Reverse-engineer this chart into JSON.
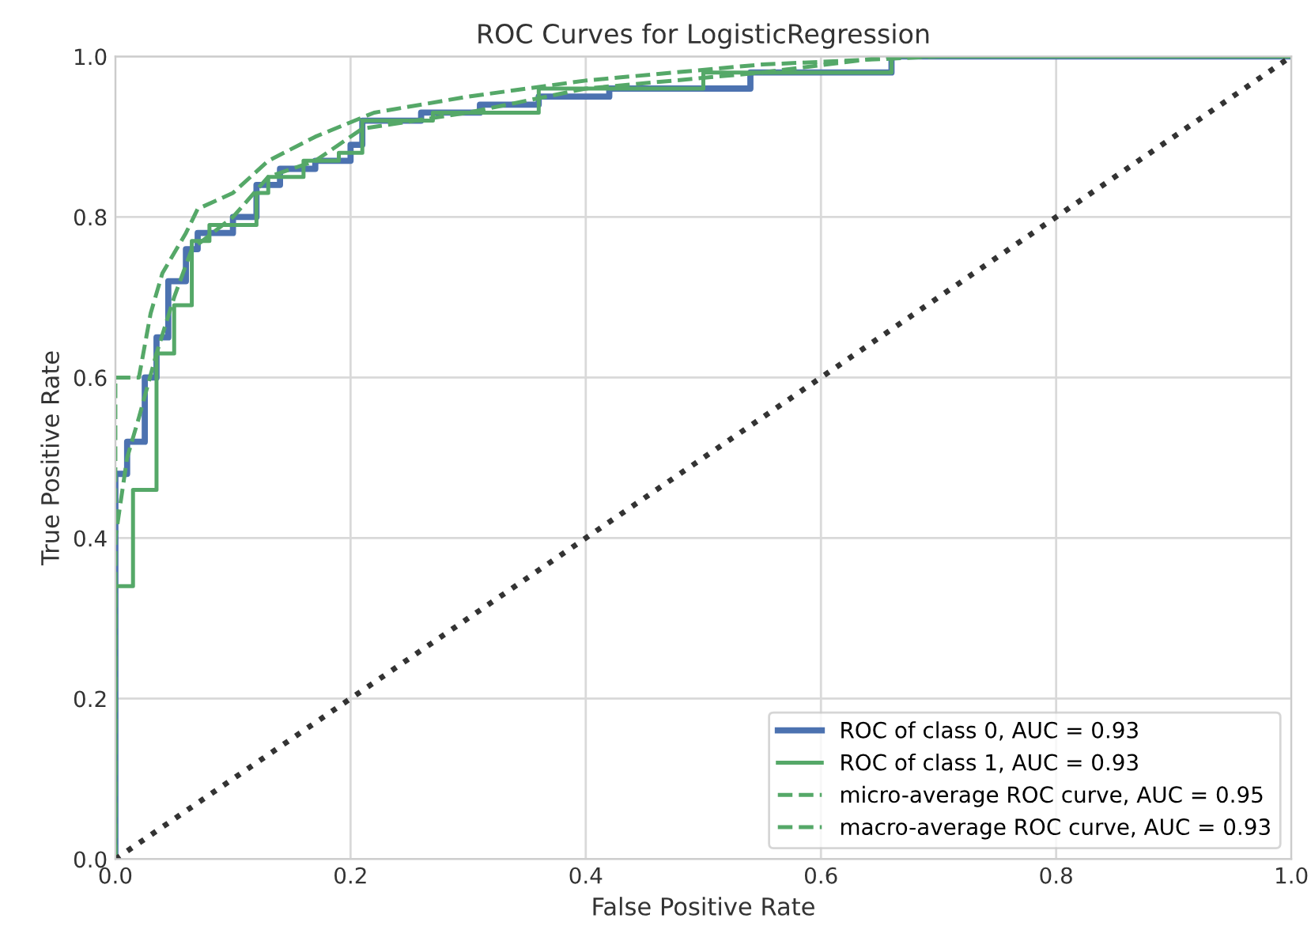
{
  "chart_data": {
    "type": "line",
    "title": "ROC Curves for LogisticRegression",
    "xlabel": "False Positive Rate",
    "ylabel": "True Positive Rate",
    "xlim": [
      0,
      1
    ],
    "ylim": [
      0,
      1
    ],
    "xticks": [
      {
        "value": 0,
        "label": "0.0"
      },
      0.2,
      0.4,
      0.6,
      0.8,
      {
        "value": 1,
        "label": "1.0"
      }
    ],
    "yticks": [
      {
        "value": 0,
        "label": "0.0"
      },
      0.2,
      0.4,
      0.6,
      0.8,
      {
        "value": 1,
        "label": "1.0"
      }
    ],
    "grid": true,
    "legend": "bottom right",
    "marker": "none",
    "series": [
      {
        "name": "ROC of class 0, AUC = 0.93",
        "color": "#4c72b0",
        "line_style": "solid",
        "x": [
          0,
          0,
          0.01,
          0.01,
          0.025,
          0.025,
          0.035,
          0.035,
          0.045,
          0.045,
          0.06,
          0.06,
          0.07,
          0.07,
          0.1,
          0.1,
          0.12,
          0.12,
          0.14,
          0.14,
          0.17,
          0.17,
          0.2,
          0.2,
          0.21,
          0.21,
          0.26,
          0.26,
          0.31,
          0.31,
          0.36,
          0.36,
          0.42,
          0.42,
          0.54,
          0.54,
          0.66,
          0.66,
          1
        ],
        "values": [
          0,
          0.48,
          0.48,
          0.52,
          0.52,
          0.6,
          0.6,
          0.65,
          0.65,
          0.72,
          0.72,
          0.76,
          0.76,
          0.78,
          0.78,
          0.8,
          0.8,
          0.84,
          0.84,
          0.86,
          0.86,
          0.87,
          0.87,
          0.89,
          0.89,
          0.92,
          0.92,
          0.93,
          0.93,
          0.94,
          0.94,
          0.95,
          0.95,
          0.96,
          0.96,
          0.98,
          0.98,
          1,
          1
        ]
      },
      {
        "name": "ROC of class 1, AUC = 0.93",
        "color": "#55a868",
        "line_style": "solid",
        "x": [
          0,
          0,
          0.015,
          0.015,
          0.035,
          0.035,
          0.05,
          0.05,
          0.065,
          0.065,
          0.08,
          0.08,
          0.12,
          0.12,
          0.13,
          0.13,
          0.16,
          0.16,
          0.19,
          0.19,
          0.21,
          0.21,
          0.27,
          0.27,
          0.36,
          0.36,
          0.5,
          0.5,
          0.66,
          0.66,
          1
        ],
        "values": [
          0,
          0.34,
          0.34,
          0.46,
          0.46,
          0.63,
          0.63,
          0.69,
          0.69,
          0.77,
          0.77,
          0.79,
          0.79,
          0.83,
          0.83,
          0.85,
          0.85,
          0.87,
          0.87,
          0.88,
          0.88,
          0.92,
          0.92,
          0.93,
          0.93,
          0.96,
          0.96,
          0.98,
          0.98,
          1,
          1
        ]
      },
      {
        "name": "micro-average ROC curve, AUC = 0.95",
        "color": "#55a868",
        "line_style": "dashed",
        "x": [
          0,
          0,
          0.02,
          0.03,
          0.04,
          0.06,
          0.07,
          0.1,
          0.13,
          0.17,
          0.22,
          0.3,
          0.4,
          0.55,
          0.7,
          1
        ],
        "values": [
          0,
          0.6,
          0.6,
          0.68,
          0.73,
          0.78,
          0.81,
          0.83,
          0.87,
          0.9,
          0.93,
          0.95,
          0.97,
          0.99,
          1,
          1
        ]
      },
      {
        "name": "macro-average ROC curve, AUC = 0.93",
        "color": "#55a868",
        "line_style": "dashed",
        "x": [
          0,
          0,
          0.01,
          0.02,
          0.035,
          0.05,
          0.065,
          0.1,
          0.13,
          0.17,
          0.21,
          0.3,
          0.4,
          0.55,
          0.66,
          1
        ],
        "values": [
          0,
          0.4,
          0.5,
          0.55,
          0.63,
          0.7,
          0.76,
          0.8,
          0.85,
          0.87,
          0.91,
          0.93,
          0.96,
          0.98,
          1,
          1
        ]
      },
      {
        "color": "#333333",
        "line_style": "dotted",
        "x": [
          0,
          1
        ],
        "values": [
          0,
          1
        ]
      }
    ]
  }
}
